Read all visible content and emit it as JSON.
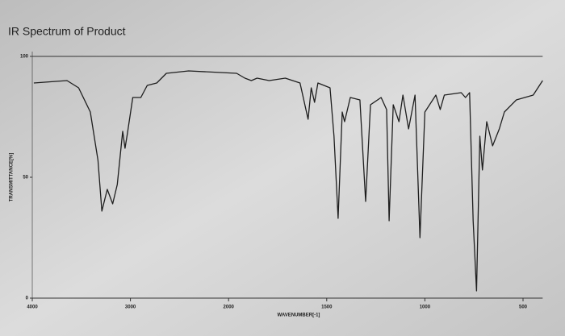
{
  "chart_data": {
    "type": "line",
    "title": "IR Spectrum of Product",
    "xlabel": "WAVENUMBER[-1]",
    "ylabel": "TRANSMITTANCE[%]",
    "x": [
      3984,
      3646,
      3528,
      3409,
      3331,
      3291,
      3236,
      3181,
      3134,
      3079,
      3055,
      3031,
      2976,
      2894,
      2829,
      2732,
      2634,
      2407,
      1959,
      1917,
      1884,
      1855,
      1793,
      1711,
      1636,
      1595,
      1579,
      1562,
      1545,
      1483,
      1463,
      1442,
      1421,
      1409,
      1380,
      1331,
      1302,
      1277,
      1223,
      1195,
      1182,
      1161,
      1132,
      1112,
      1083,
      1050,
      1025,
      1000,
      944,
      922,
      901,
      815,
      793,
      772,
      754,
      737,
      720,
      707,
      685,
      655,
      621,
      595,
      534,
      448,
      400
    ],
    "series": [
      {
        "color": "#1e1e1e",
        "values": [
          89,
          90,
          87,
          77,
          57,
          36,
          45,
          39,
          47,
          69,
          62,
          68,
          83,
          83,
          88,
          89,
          93,
          94,
          93,
          91,
          90,
          91,
          90,
          91,
          89,
          74,
          87,
          81,
          89,
          87,
          67,
          33,
          77,
          73,
          83,
          82,
          40,
          80,
          83,
          78,
          32,
          80,
          73,
          84,
          70,
          84,
          25,
          77,
          84,
          78,
          84,
          85,
          83,
          85,
          32,
          3,
          67,
          53,
          73,
          63,
          70,
          77,
          82,
          84,
          90
        ]
      }
    ],
    "xlim": [
      4000,
      400
    ],
    "xticks": [
      4000,
      3000,
      2000,
      1500,
      1000,
      500
    ],
    "ylim": [
      0,
      100
    ],
    "yticks": [
      0,
      50,
      100
    ]
  }
}
